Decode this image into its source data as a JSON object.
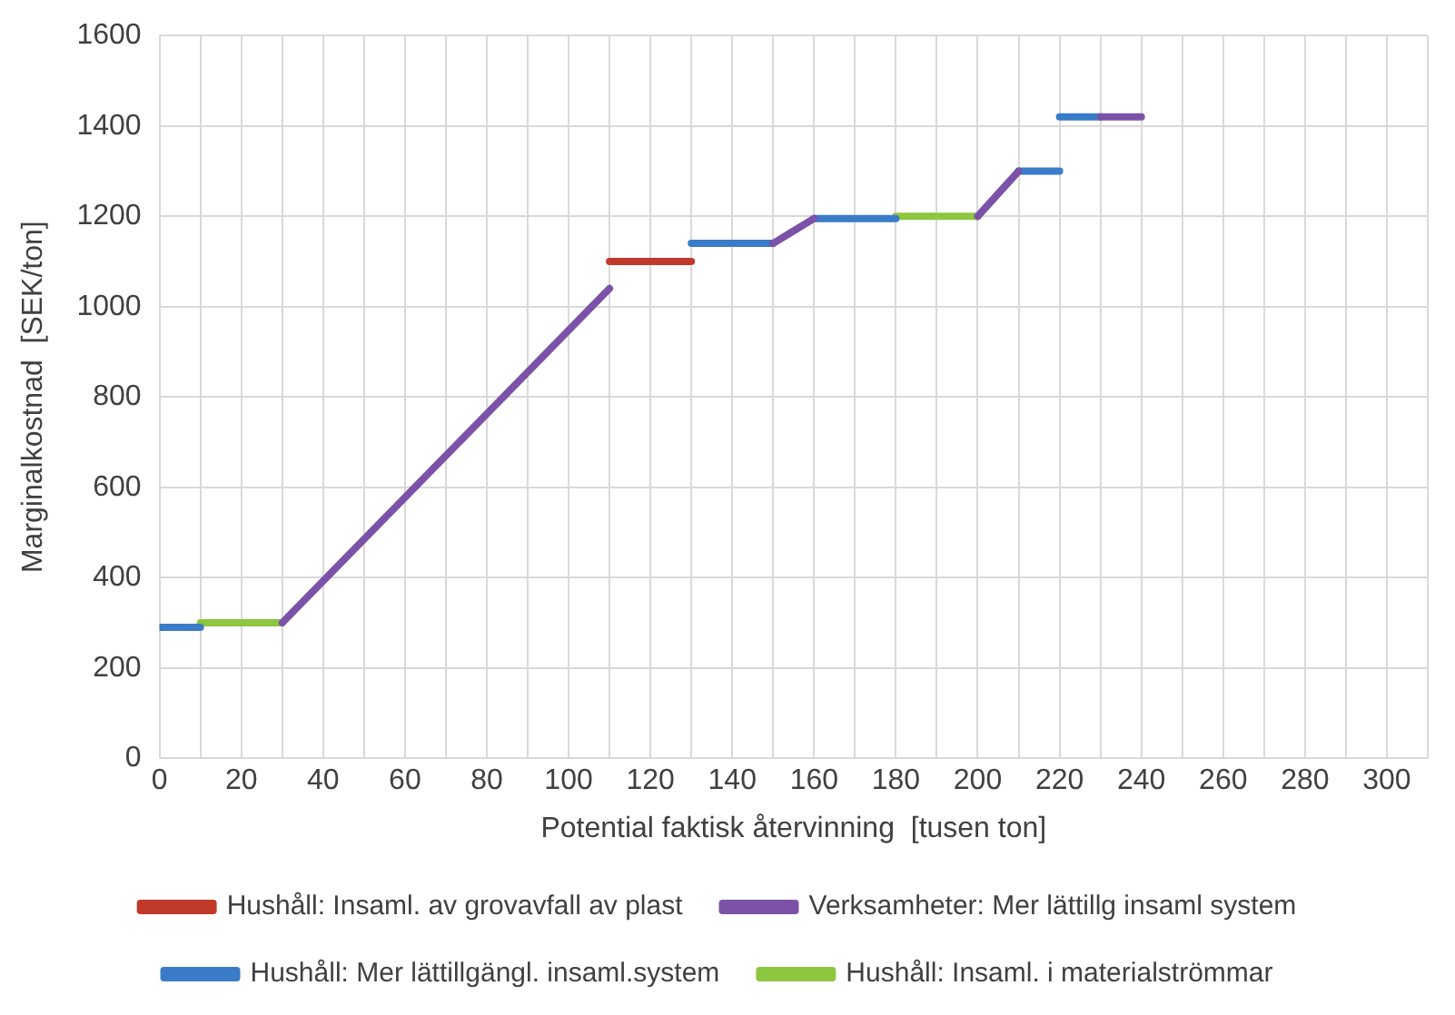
{
  "chart_data": {
    "type": "line",
    "xlabel": "Potential faktisk återvinning  [tusen ton]",
    "ylabel": "Marginalkostnad  [SEK/ton]",
    "xlim": [
      0,
      310
    ],
    "xticks": [
      0,
      {
        "value": 10,
        "label": null
      },
      20,
      {
        "value": 30,
        "label": null
      },
      40,
      {
        "value": 50,
        "label": null
      },
      60,
      {
        "value": 70,
        "label": null
      },
      80,
      {
        "value": 90,
        "label": null
      },
      100,
      {
        "value": 110,
        "label": null
      },
      120,
      {
        "value": 130,
        "label": null
      },
      140,
      {
        "value": 150,
        "label": null
      },
      160,
      {
        "value": 170,
        "label": null
      },
      180,
      {
        "value": 190,
        "label": null
      },
      200,
      {
        "value": 210,
        "label": null
      },
      220,
      {
        "value": 230,
        "label": null
      },
      240,
      {
        "value": 250,
        "label": null
      },
      260,
      {
        "value": 270,
        "label": null
      },
      280,
      {
        "value": 290,
        "label": null
      },
      300,
      {
        "value": 310,
        "label": null
      }
    ],
    "ylim": [
      0,
      1600
    ],
    "yticks": [
      0,
      200,
      400,
      600,
      800,
      1000,
      1200,
      1400,
      1600
    ],
    "grid": true,
    "legend": "bottom",
    "marker": "none",
    "line_style": "solid",
    "series": [
      {
        "name": "Hushåll: Insaml. av grovavfall av plast",
        "color": "#c0392b",
        "x": [
          110,
          130
        ],
        "values": [
          1100,
          1100
        ]
      },
      {
        "name": "Verksamheter: Mer lättillg insaml system",
        "color": "#7b52a8",
        "x": [
          30,
          110,
          null,
          150,
          160,
          null,
          200,
          210,
          null,
          230,
          240
        ],
        "values": [
          300,
          1040,
          null,
          1140,
          1195,
          null,
          1200,
          1300,
          null,
          1420,
          1420
        ]
      },
      {
        "name": "Hushåll: Mer lättillgängl. insaml.system",
        "color": "#3a7cc8",
        "x": [
          0,
          10,
          null,
          130,
          150,
          null,
          160,
          180,
          null,
          210,
          220,
          null,
          220,
          230
        ],
        "values": [
          290,
          290,
          null,
          1140,
          1140,
          null,
          1195,
          1195,
          null,
          1300,
          1300,
          null,
          1420,
          1420
        ]
      },
      {
        "name": "Hushåll: Insaml. i materialströmmar",
        "color": "#8dc63f",
        "x": [
          10,
          30,
          null,
          180,
          200
        ],
        "values": [
          300,
          300,
          null,
          1200,
          1200
        ]
      }
    ]
  }
}
